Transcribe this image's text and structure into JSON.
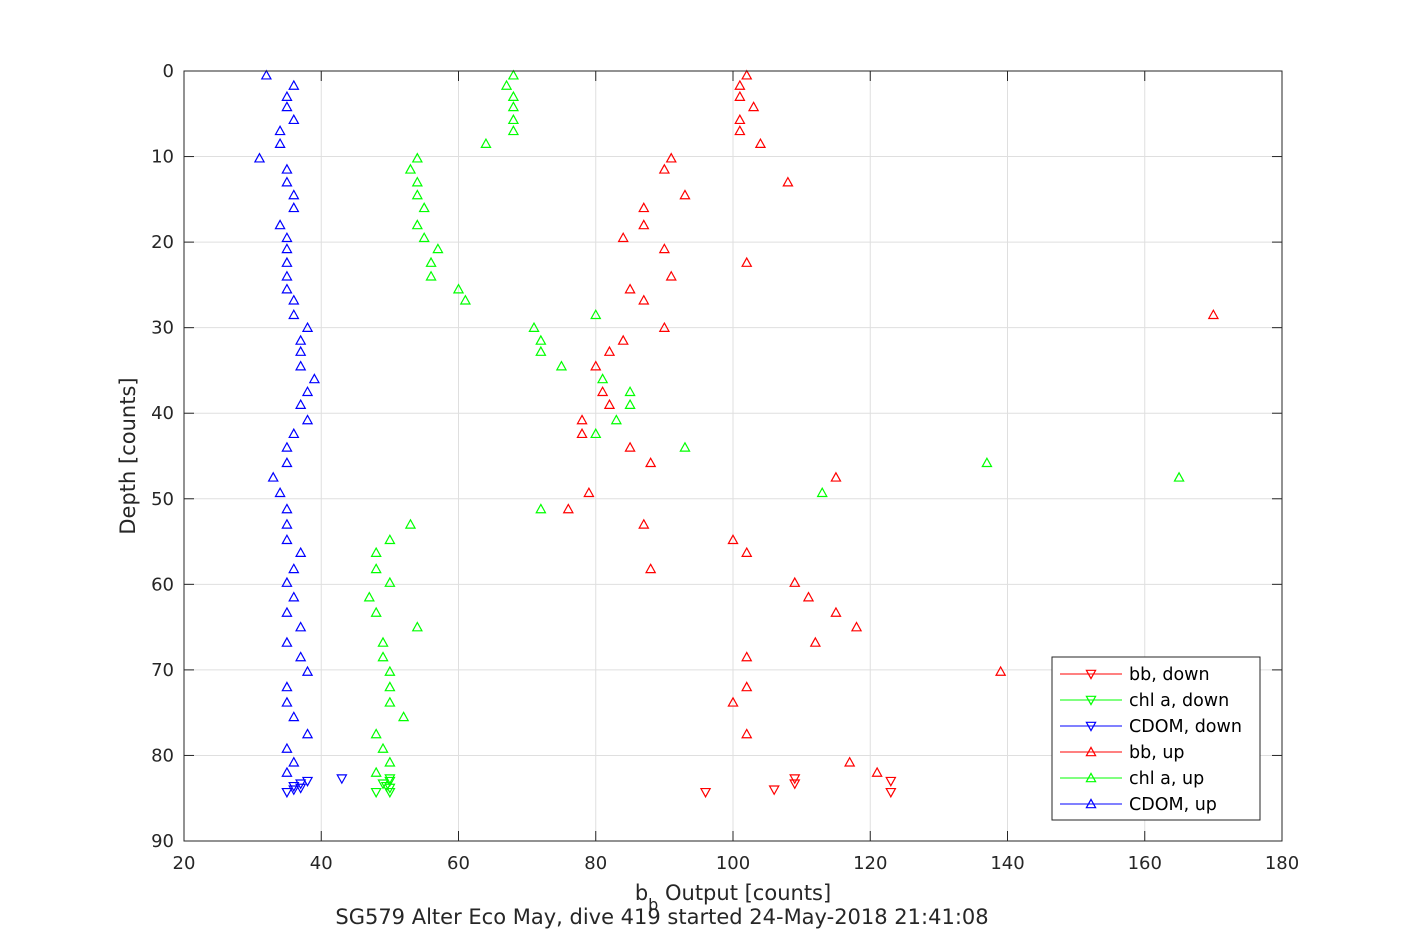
{
  "chart_data": {
    "type": "scatter",
    "title": "SG579 Alter Eco May, dive 419 started 24-May-2018 21:41:08",
    "xlabel": {
      "main": "b",
      "sub": "b",
      "rest": " Output [counts]"
    },
    "ylabel": "Depth [counts]",
    "xlim": [
      20,
      180
    ],
    "ylim": [
      0,
      90
    ],
    "y_reversed": true,
    "x_ticks": [
      "20",
      "40",
      "60",
      "80",
      "100",
      "120",
      "140",
      "160",
      "180"
    ],
    "x_tick_values": [
      20,
      40,
      60,
      80,
      100,
      120,
      140,
      160,
      180
    ],
    "y_ticks": [
      "0",
      "10",
      "20",
      "30",
      "40",
      "50",
      "60",
      "70",
      "80",
      "90"
    ],
    "y_tick_values": [
      0,
      10,
      20,
      30,
      40,
      50,
      60,
      70,
      80,
      90
    ],
    "grid": true,
    "legend_position": "bottom-right",
    "series": [
      {
        "name": "bb, down",
        "color": "#ff0000",
        "marker": "triangle-down",
        "points": [
          [
            96,
            84.3
          ],
          [
            106,
            84
          ],
          [
            109,
            83.3
          ],
          [
            109,
            82.7
          ],
          [
            123,
            84.3
          ],
          [
            123,
            83
          ]
        ]
      },
      {
        "name": "chl a, down",
        "color": "#00ff00",
        "marker": "triangle-down",
        "points": [
          [
            48,
            84.3
          ],
          [
            50,
            84.3
          ],
          [
            50,
            83.8
          ],
          [
            49.5,
            83.6
          ],
          [
            49,
            83.3
          ],
          [
            50,
            83
          ],
          [
            50,
            82.7
          ]
        ]
      },
      {
        "name": "CDOM, down",
        "color": "#0000ff",
        "marker": "triangle-down",
        "points": [
          [
            35,
            84.3
          ],
          [
            36,
            84
          ],
          [
            37,
            83.8
          ],
          [
            36,
            83.6
          ],
          [
            37,
            83.3
          ],
          [
            38,
            83
          ],
          [
            43,
            82.7
          ]
        ]
      },
      {
        "name": "bb, up",
        "color": "#ff0000",
        "marker": "triangle-up",
        "points": [
          [
            102,
            0.5
          ],
          [
            101,
            1.7
          ],
          [
            101,
            3
          ],
          [
            103,
            4.2
          ],
          [
            101,
            5.7
          ],
          [
            101,
            7
          ],
          [
            104,
            8.5
          ],
          [
            91,
            10.2
          ],
          [
            90,
            11.5
          ],
          [
            108,
            13
          ],
          [
            93,
            14.5
          ],
          [
            87,
            16
          ],
          [
            87,
            18
          ],
          [
            84,
            19.5
          ],
          [
            90,
            20.8
          ],
          [
            102,
            22.4
          ],
          [
            91,
            24
          ],
          [
            85,
            25.5
          ],
          [
            87,
            26.8
          ],
          [
            170,
            28.5
          ],
          [
            90,
            30
          ],
          [
            84,
            31.5
          ],
          [
            82,
            32.8
          ],
          [
            80,
            34.5
          ],
          [
            81,
            37.5
          ],
          [
            82,
            39
          ],
          [
            78,
            40.8
          ],
          [
            78,
            42.4
          ],
          [
            85,
            44
          ],
          [
            88,
            45.8
          ],
          [
            115,
            47.5
          ],
          [
            79,
            49.3
          ],
          [
            76,
            51.2
          ],
          [
            87,
            53
          ],
          [
            100,
            54.8
          ],
          [
            102,
            56.3
          ],
          [
            88,
            58.2
          ],
          [
            109,
            59.8
          ],
          [
            111,
            61.5
          ],
          [
            115,
            63.3
          ],
          [
            118,
            65
          ],
          [
            112,
            66.8
          ],
          [
            102,
            68.5
          ],
          [
            139,
            70.2
          ],
          [
            102,
            72
          ],
          [
            100,
            73.8
          ],
          [
            102,
            77.5
          ],
          [
            117,
            80.8
          ],
          [
            121,
            82
          ]
        ]
      },
      {
        "name": "chl a, up",
        "color": "#00ff00",
        "marker": "triangle-up",
        "points": [
          [
            68,
            0.5
          ],
          [
            67,
            1.7
          ],
          [
            68,
            3
          ],
          [
            68,
            4.2
          ],
          [
            68,
            5.7
          ],
          [
            68,
            7
          ],
          [
            64,
            8.5
          ],
          [
            54,
            10.2
          ],
          [
            53,
            11.5
          ],
          [
            54,
            13
          ],
          [
            54,
            14.5
          ],
          [
            55,
            16
          ],
          [
            54,
            18
          ],
          [
            55,
            19.5
          ],
          [
            57,
            20.8
          ],
          [
            56,
            22.4
          ],
          [
            56,
            24
          ],
          [
            60,
            25.5
          ],
          [
            61,
            26.8
          ],
          [
            80,
            28.5
          ],
          [
            71,
            30
          ],
          [
            72,
            31.5
          ],
          [
            72,
            32.8
          ],
          [
            75,
            34.5
          ],
          [
            81,
            36
          ],
          [
            85,
            37.5
          ],
          [
            85,
            39
          ],
          [
            83,
            40.8
          ],
          [
            80,
            42.4
          ],
          [
            93,
            44
          ],
          [
            137,
            45.8
          ],
          [
            165,
            47.5
          ],
          [
            113,
            49.3
          ],
          [
            72,
            51.2
          ],
          [
            53,
            53
          ],
          [
            50,
            54.8
          ],
          [
            48,
            56.3
          ],
          [
            48,
            58.2
          ],
          [
            50,
            59.8
          ],
          [
            47,
            61.5
          ],
          [
            48,
            63.3
          ],
          [
            54,
            65
          ],
          [
            49,
            66.8
          ],
          [
            49,
            68.5
          ],
          [
            50,
            70.2
          ],
          [
            50,
            72
          ],
          [
            50,
            73.8
          ],
          [
            52,
            75.5
          ],
          [
            48,
            77.5
          ],
          [
            49,
            79.2
          ],
          [
            50,
            80.8
          ],
          [
            48,
            82
          ]
        ]
      },
      {
        "name": "CDOM, up",
        "color": "#0000ff",
        "marker": "triangle-up",
        "points": [
          [
            32,
            0.5
          ],
          [
            36,
            1.7
          ],
          [
            35,
            3
          ],
          [
            35,
            4.2
          ],
          [
            36,
            5.7
          ],
          [
            34,
            7
          ],
          [
            34,
            8.5
          ],
          [
            31,
            10.2
          ],
          [
            35,
            11.5
          ],
          [
            35,
            13
          ],
          [
            36,
            14.5
          ],
          [
            36,
            16
          ],
          [
            34,
            18
          ],
          [
            35,
            19.5
          ],
          [
            35,
            20.8
          ],
          [
            35,
            22.4
          ],
          [
            35,
            24
          ],
          [
            35,
            25.5
          ],
          [
            36,
            26.8
          ],
          [
            36,
            28.5
          ],
          [
            38,
            30
          ],
          [
            37,
            31.5
          ],
          [
            37,
            32.8
          ],
          [
            37,
            34.5
          ],
          [
            39,
            36
          ],
          [
            38,
            37.5
          ],
          [
            37,
            39
          ],
          [
            38,
            40.8
          ],
          [
            36,
            42.4
          ],
          [
            35,
            44
          ],
          [
            35,
            45.8
          ],
          [
            33,
            47.5
          ],
          [
            34,
            49.3
          ],
          [
            35,
            51.2
          ],
          [
            35,
            53
          ],
          [
            35,
            54.8
          ],
          [
            37,
            56.3
          ],
          [
            36,
            58.2
          ],
          [
            35,
            59.8
          ],
          [
            36,
            61.5
          ],
          [
            35,
            63.3
          ],
          [
            37,
            65
          ],
          [
            35,
            66.8
          ],
          [
            37,
            68.5
          ],
          [
            38,
            70.2
          ],
          [
            35,
            72
          ],
          [
            35,
            73.8
          ],
          [
            36,
            75.5
          ],
          [
            38,
            77.5
          ],
          [
            35,
            79.2
          ],
          [
            36,
            80.8
          ],
          [
            35,
            82
          ]
        ]
      }
    ]
  }
}
